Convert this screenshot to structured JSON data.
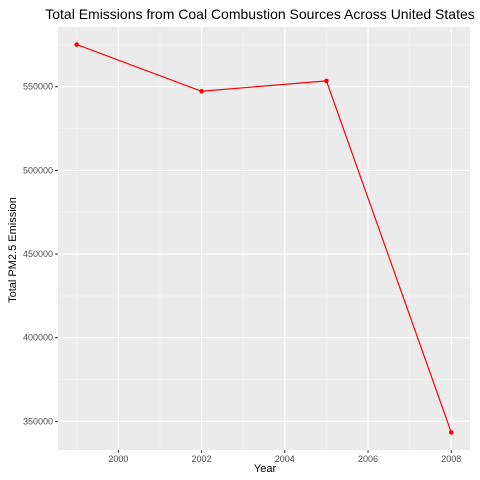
{
  "chart_data": {
    "type": "line",
    "title": "Total Emissions from Coal Combustion Sources Across United States",
    "xlabel": "Year",
    "ylabel": "Total PM2.5 Emission",
    "x": [
      1999,
      2002,
      2005,
      2008
    ],
    "series": [
      {
        "values": [
          575200,
          547300,
          553500,
          343400
        ]
      }
    ],
    "xlim": [
      1998.55,
      2008.45
    ],
    "ylim": [
      332900,
      585700
    ],
    "x_ticks": [
      2000,
      2002,
      2004,
      2006,
      2008
    ],
    "x_tick_labels": [
      "2000",
      "2002",
      "2004",
      "2006",
      "2008"
    ],
    "y_ticks": [
      350000,
      400000,
      450000,
      500000,
      550000
    ],
    "y_tick_labels": [
      "350000",
      "400000",
      "450000",
      "500000",
      "550000"
    ],
    "grid": true,
    "legend": "none",
    "colors": {
      "line": "#ff0000",
      "point": "#ff0000",
      "panel": "#ebebeb",
      "grid_major": "#ffffff",
      "grid_minor": "#f5f5f5",
      "tick_label": "#4d4d4d"
    }
  }
}
